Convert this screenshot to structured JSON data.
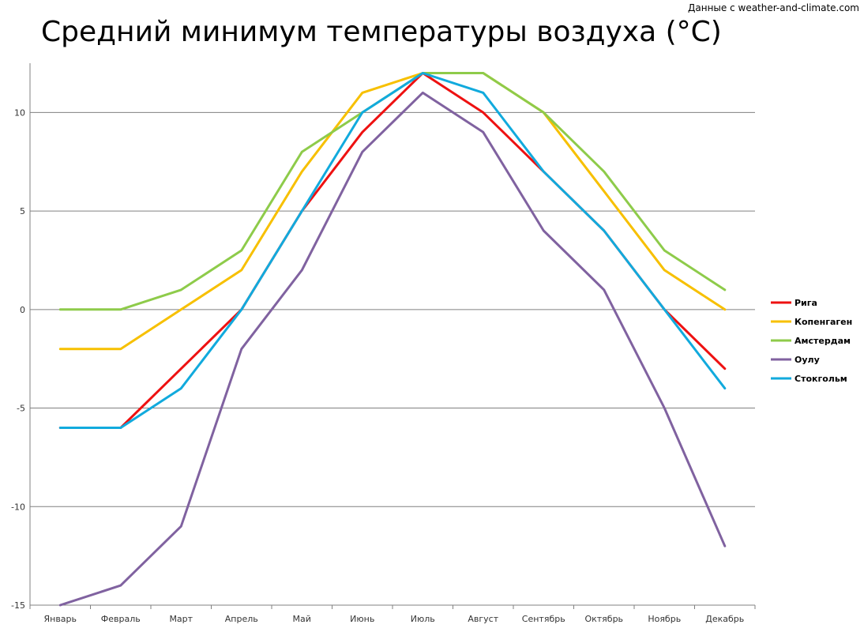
{
  "chart_data": {
    "type": "line",
    "title": "Средний минимум температуры воздуха (°C)",
    "source": "Данные с weather-and-climate.com",
    "categories": [
      "Январь",
      "Февраль",
      "Март",
      "Апрель",
      "Май",
      "Июнь",
      "Июль",
      "Август",
      "Сентябрь",
      "Октябрь",
      "Ноябрь",
      "Декабрь"
    ],
    "ylim": [
      -15,
      12.5
    ],
    "yticks": [
      -15,
      -10,
      -5,
      0,
      5,
      10
    ],
    "grid": true,
    "legend_position": "right",
    "series": [
      {
        "name": "Рига",
        "color": "#ee1111",
        "values": [
          -6,
          -6,
          -3,
          0,
          5,
          9,
          12,
          10,
          7,
          4,
          0,
          -3
        ]
      },
      {
        "name": "Копенгаген",
        "color": "#f7c000",
        "values": [
          -2,
          -2,
          0,
          2,
          7,
          11,
          12,
          12,
          10,
          6,
          2,
          0
        ]
      },
      {
        "name": "Амстердам",
        "color": "#8ecb4a",
        "values": [
          0,
          0,
          1,
          3,
          8,
          10,
          12,
          12,
          10,
          7,
          3,
          1
        ]
      },
      {
        "name": "Оулу",
        "color": "#8062a0",
        "values": [
          -15,
          -14,
          -11,
          -2,
          2,
          8,
          11,
          9,
          4,
          1,
          -5,
          -12
        ]
      },
      {
        "name": "Стокгольм",
        "color": "#11aadd",
        "values": [
          -6,
          -6,
          -4,
          0,
          5,
          10,
          12,
          11,
          7,
          4,
          0,
          -4
        ]
      }
    ]
  }
}
